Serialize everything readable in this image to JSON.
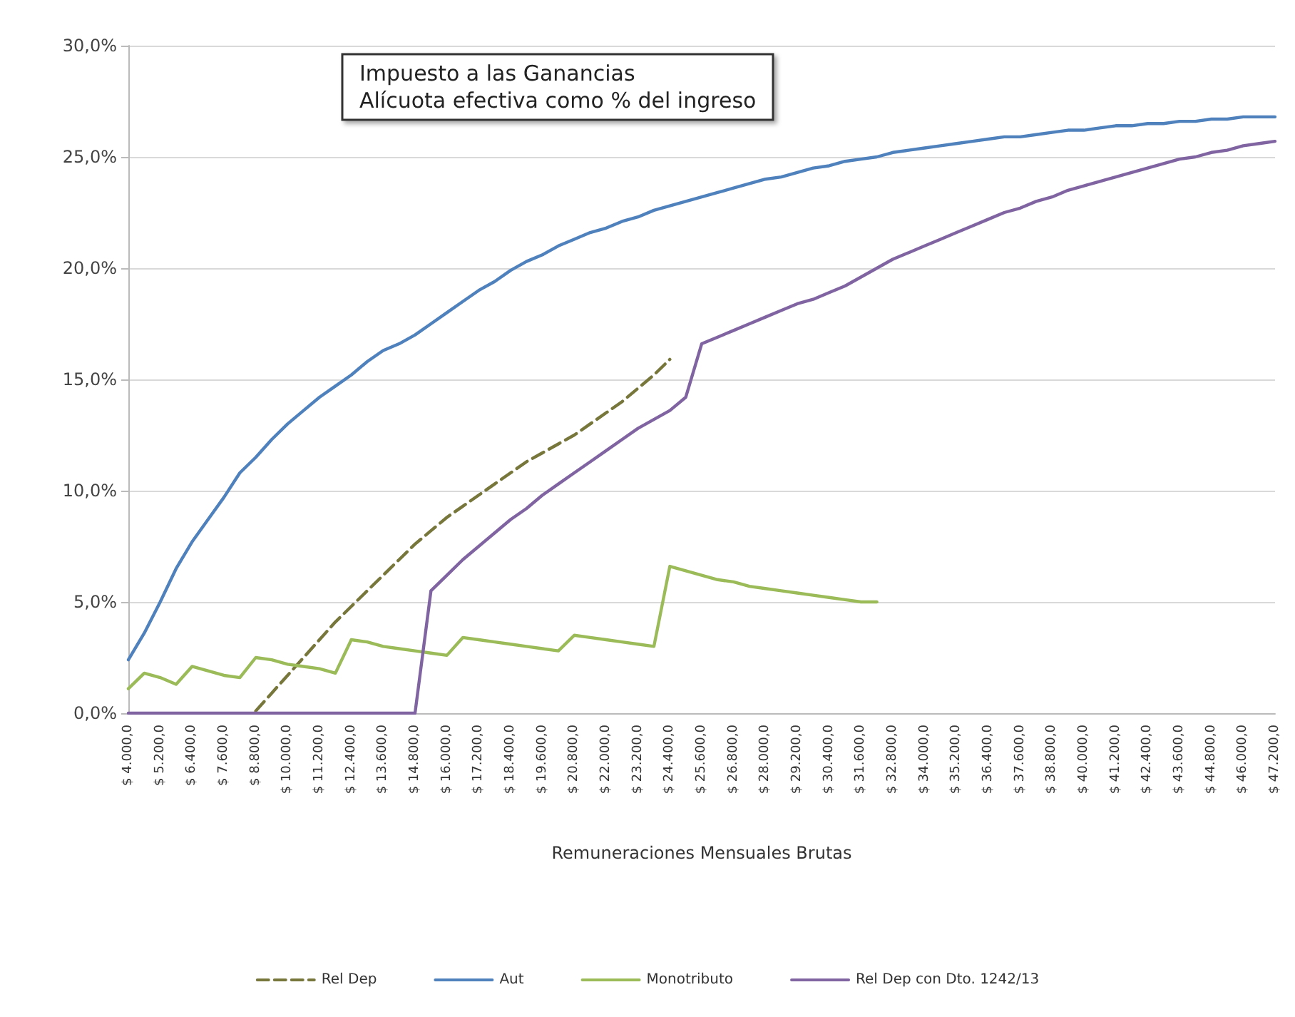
{
  "chart_data": {
    "type": "line",
    "title": "Impuesto a las Ganancias",
    "subtitle": "Alícuota efectiva como % del ingreso",
    "xlabel": "Remuneraciones Mensuales Brutas",
    "categories": [
      "$ 4.000,0",
      null,
      "$ 5.200,0",
      null,
      "$ 6.400,0",
      null,
      "$ 7.600,0",
      null,
      "$ 8.800,0",
      null,
      "$ 10.000,0",
      null,
      "$ 11.200,0",
      null,
      "$ 12.400,0",
      null,
      "$ 13.600,0",
      null,
      "$ 14.800,0",
      null,
      "$ 16.000,0",
      null,
      "$ 17.200,0",
      null,
      "$ 18.400,0",
      null,
      "$ 19.600,0",
      null,
      "$ 20.800,0",
      null,
      "$ 22.000,0",
      null,
      "$ 23.200,0",
      null,
      "$ 24.400,0",
      null,
      "$ 25.600,0",
      null,
      "$ 26.800,0",
      null,
      "$ 28.000,0",
      null,
      "$ 29.200,0",
      null,
      "$ 30.400,0",
      null,
      "$ 31.600,0",
      null,
      "$ 32.800,0",
      null,
      "$ 34.000,0",
      null,
      "$ 35.200,0",
      null,
      "$ 36.400,0",
      null,
      "$ 37.600,0",
      null,
      "$ 38.800,0",
      null,
      "$ 40.000,0",
      null,
      "$ 41.200,0",
      null,
      "$ 42.400,0",
      null,
      "$ 43.600,0",
      null,
      "$ 44.800,0",
      null,
      "$ 46.000,0",
      null,
      "$ 47.200,0"
    ],
    "series": [
      {
        "name": "Rel Dep",
        "color": "#77773c",
        "line_style": "dashed",
        "values": [
          null,
          null,
          null,
          null,
          null,
          null,
          null,
          null,
          0.1,
          0.9,
          1.7,
          2.5,
          3.3,
          4.1,
          4.8,
          5.5,
          6.2,
          6.9,
          7.6,
          8.2,
          8.8,
          9.3,
          9.8,
          10.3,
          10.8,
          11.3,
          11.7,
          12.1,
          12.5,
          13.0,
          13.5,
          14.0,
          14.6,
          15.2,
          15.9,
          null,
          null,
          null,
          null,
          null,
          null,
          null,
          null,
          null,
          null,
          null,
          null,
          null,
          null,
          null,
          null,
          null,
          null,
          null,
          null,
          null,
          null,
          null,
          null,
          null,
          null,
          null,
          null,
          null,
          null,
          null,
          null,
          null,
          null,
          null,
          null,
          null,
          null
        ]
      },
      {
        "name": "Aut",
        "color": "#4f81bd",
        "line_style": "solid",
        "values": [
          2.4,
          3.6,
          5.0,
          6.5,
          7.7,
          8.7,
          9.7,
          10.8,
          11.5,
          12.3,
          13.0,
          13.6,
          14.2,
          14.7,
          15.2,
          15.8,
          16.3,
          16.6,
          17.0,
          17.5,
          18.0,
          18.5,
          19.0,
          19.4,
          19.9,
          20.3,
          20.6,
          21.0,
          21.3,
          21.6,
          21.8,
          22.1,
          22.3,
          22.6,
          22.8,
          23.0,
          23.2,
          23.4,
          23.6,
          23.8,
          24.0,
          24.1,
          24.3,
          24.5,
          24.6,
          24.8,
          24.9,
          25.0,
          25.2,
          25.3,
          25.4,
          25.5,
          25.6,
          25.7,
          25.8,
          25.9,
          25.9,
          26.0,
          26.1,
          26.2,
          26.2,
          26.3,
          26.4,
          26.4,
          26.5,
          26.5,
          26.6,
          26.6,
          26.7,
          26.7,
          26.8,
          26.8,
          26.8
        ]
      },
      {
        "name": "Monotributo",
        "color": "#9bbb59",
        "line_style": "solid",
        "values": [
          1.1,
          1.8,
          1.6,
          1.3,
          2.1,
          1.9,
          1.7,
          1.6,
          2.5,
          2.4,
          2.2,
          2.1,
          2.0,
          1.8,
          3.3,
          3.2,
          3.0,
          2.9,
          2.8,
          2.7,
          2.6,
          3.4,
          3.3,
          3.2,
          3.1,
          3.0,
          2.9,
          2.8,
          3.5,
          3.4,
          3.3,
          3.2,
          3.1,
          3.0,
          6.6,
          6.4,
          6.2,
          6.0,
          5.9,
          5.7,
          5.6,
          5.5,
          5.4,
          5.3,
          5.2,
          5.1,
          5.0,
          5.0,
          null,
          null,
          null,
          null,
          null,
          null,
          null,
          null,
          null,
          null,
          null,
          null,
          null,
          null,
          null,
          null,
          null,
          null,
          null,
          null,
          null,
          null,
          null,
          null,
          null
        ]
      },
      {
        "name": "Rel Dep con Dto. 1242/13",
        "color": "#8064a2",
        "line_style": "solid",
        "values": [
          0,
          0,
          0,
          0,
          0,
          0,
          0,
          0,
          0,
          0,
          0,
          0,
          0,
          0,
          0,
          0,
          0,
          0,
          0,
          5.5,
          6.2,
          6.9,
          7.5,
          8.1,
          8.7,
          9.2,
          9.8,
          10.3,
          10.8,
          11.3,
          11.8,
          12.3,
          12.8,
          13.2,
          13.6,
          14.2,
          16.6,
          16.9,
          17.2,
          17.5,
          17.8,
          18.1,
          18.4,
          18.6,
          18.9,
          19.2,
          19.6,
          20.0,
          20.4,
          20.7,
          21.0,
          21.3,
          21.6,
          21.9,
          22.2,
          22.5,
          22.7,
          23.0,
          23.2,
          23.5,
          23.7,
          23.9,
          24.1,
          24.3,
          24.5,
          24.7,
          24.9,
          25.0,
          25.2,
          25.3,
          25.5,
          25.6,
          25.7
        ]
      }
    ],
    "ylim": [
      0,
      30
    ],
    "yticks": [
      {
        "value": 0,
        "label": "0,0%"
      },
      {
        "value": 5,
        "label": "5,0%"
      },
      {
        "value": 10,
        "label": "10,0%"
      },
      {
        "value": 15,
        "label": "15,0%"
      },
      {
        "value": 20,
        "label": "20,0%"
      },
      {
        "value": 25,
        "label": "25,0%"
      },
      {
        "value": 30,
        "label": "30,0%"
      }
    ],
    "grid": "y",
    "legend": "bottom",
    "marker": "none"
  }
}
